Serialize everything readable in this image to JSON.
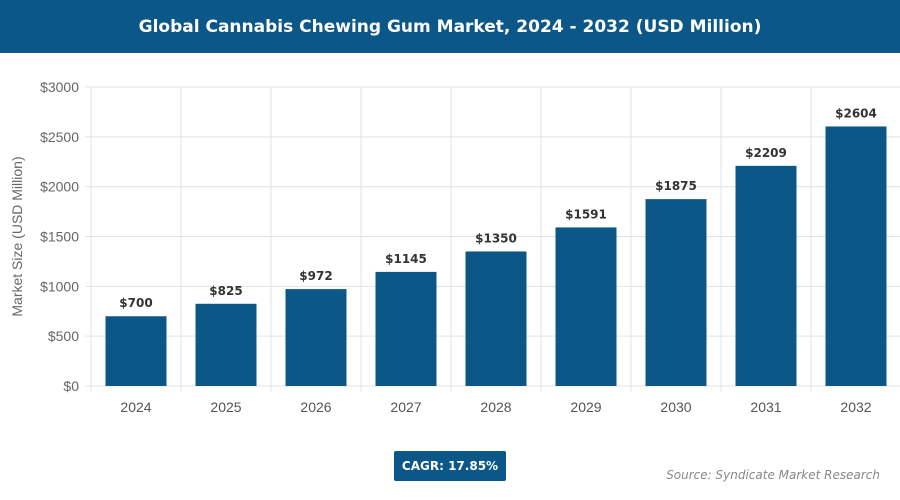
{
  "chart_data": {
    "type": "bar",
    "title": "Global Cannabis Chewing Gum Market, 2024 - 2032 (USD Million)",
    "categories": [
      "2024",
      "2025",
      "2026",
      "2027",
      "2028",
      "2029",
      "2030",
      "2031",
      "2032"
    ],
    "values": [
      700,
      825,
      972,
      1145,
      1350,
      1591,
      1875,
      2209,
      2604
    ],
    "data_labels": [
      "$700",
      "$825",
      "$972",
      "$1145",
      "$1350",
      "$1591",
      "$1875",
      "$2209",
      "$2604"
    ],
    "xlabel": "",
    "ylabel": "Market Size (USD Million)",
    "ylim": [
      0,
      3000
    ],
    "yticks": [
      0,
      500,
      1000,
      1500,
      2000,
      2500,
      3000
    ],
    "ytick_labels": [
      "$0",
      "$500",
      "$1000",
      "$1500",
      "$2000",
      "$2500",
      "$3000"
    ],
    "grid": true,
    "bar_color": "#0b5788"
  },
  "cagr": "CAGR: 17.85%",
  "source": "Source: Syndicate Market Research"
}
